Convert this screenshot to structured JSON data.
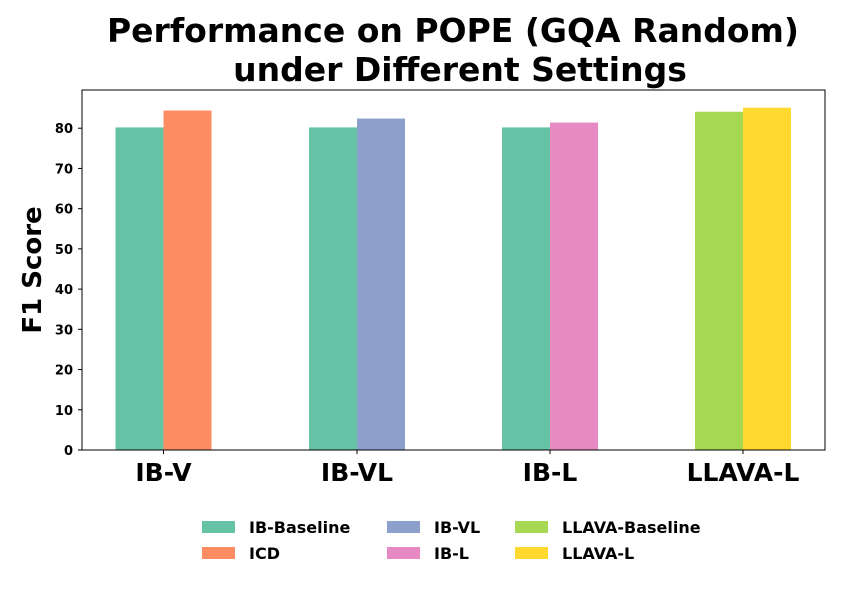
{
  "chart_data": {
    "type": "bar",
    "title_lines": [
      "Performance on POPE (GQA Random)",
      "under Different Settings"
    ],
    "xlabel": "",
    "ylabel": "F1 Score",
    "ylim": [
      0,
      89.5
    ],
    "yticks": [
      0,
      10,
      20,
      30,
      40,
      50,
      60,
      70,
      80
    ],
    "categories": [
      "IB-V",
      "IB-VL",
      "IB-L",
      "LLAVA-L"
    ],
    "groups": [
      {
        "category": "IB-V",
        "bars": [
          {
            "series": "IB-Baseline",
            "value": 80.2,
            "color": "#66c2a5"
          },
          {
            "series": "ICD",
            "value": 84.4,
            "color": "#fc8d62"
          }
        ]
      },
      {
        "category": "IB-VL",
        "bars": [
          {
            "series": "IB-Baseline",
            "value": 80.2,
            "color": "#66c2a5"
          },
          {
            "series": "IB-VL",
            "value": 82.4,
            "color": "#8da0cb"
          }
        ]
      },
      {
        "category": "IB-L",
        "bars": [
          {
            "series": "IB-Baseline",
            "value": 80.2,
            "color": "#66c2a5"
          },
          {
            "series": "IB-L",
            "value": 81.4,
            "color": "#e78ac3"
          }
        ]
      },
      {
        "category": "LLAVA-L",
        "bars": [
          {
            "series": "LLAVA-Baseline",
            "value": 84.1,
            "color": "#a6d854"
          },
          {
            "series": "LLAVA-L",
            "value": 85.1,
            "color": "#ffd92f"
          }
        ]
      }
    ],
    "legend": {
      "placement": "bottom-center",
      "columns": [
        [
          {
            "label": "IB-Baseline",
            "color": "#66c2a5"
          },
          {
            "label": "ICD",
            "color": "#fc8d62"
          }
        ],
        [
          {
            "label": "IB-VL",
            "color": "#8da0cb"
          },
          {
            "label": "IB-L",
            "color": "#e78ac3"
          }
        ],
        [
          {
            "label": "LLAVA-Baseline",
            "color": "#a6d854"
          },
          {
            "label": "LLAVA-L",
            "color": "#ffd92f"
          }
        ]
      ]
    },
    "grid": false
  }
}
